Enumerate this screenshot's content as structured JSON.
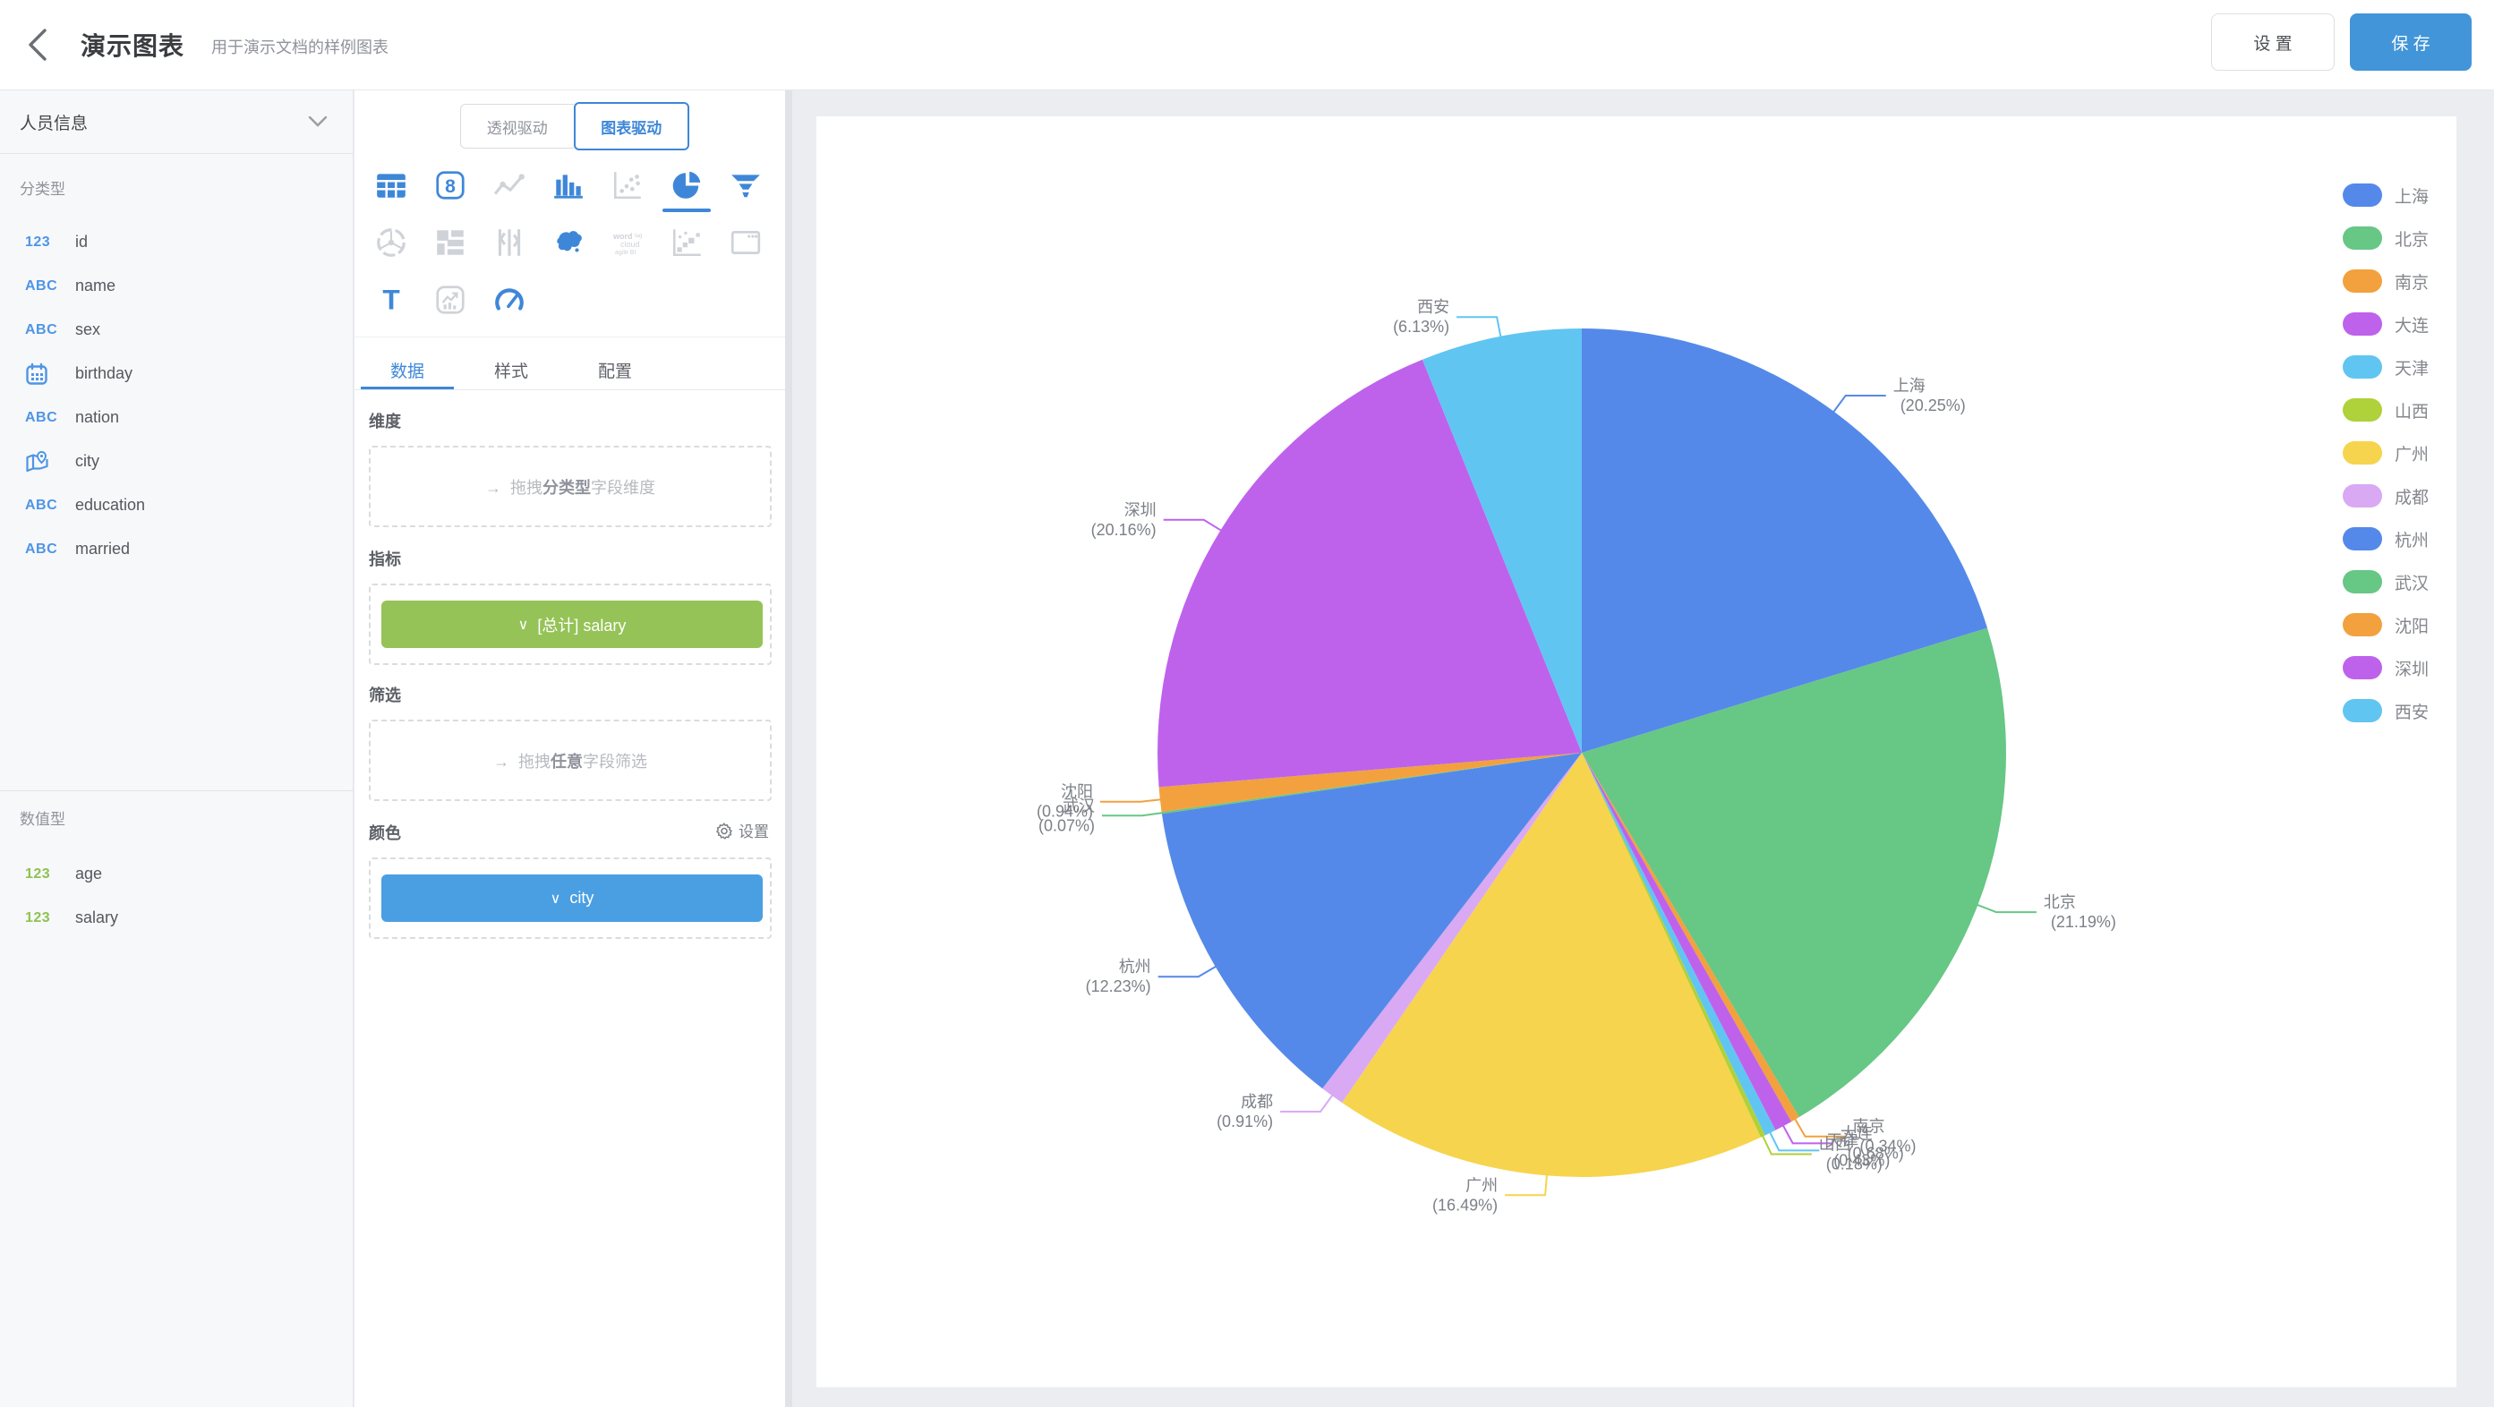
{
  "header": {
    "title": "演示图表",
    "subtitle": "用于演示文档的样例图表",
    "settings_label": "设 置",
    "save_label": "保 存",
    "accent_color": "#4295D8"
  },
  "sidebar": {
    "dataset_name": "人员信息",
    "section_categorical": "分类型",
    "section_numeric": "数值型",
    "categorical_fields": [
      {
        "icon": "123",
        "color": "blue",
        "name": "id"
      },
      {
        "icon": "ABC",
        "color": "blue",
        "name": "name"
      },
      {
        "icon": "ABC",
        "color": "blue",
        "name": "sex"
      },
      {
        "icon": "calendar",
        "color": "blue",
        "name": "birthday"
      },
      {
        "icon": "ABC",
        "color": "blue",
        "name": "nation"
      },
      {
        "icon": "location",
        "color": "blue",
        "name": "city"
      },
      {
        "icon": "ABC",
        "color": "blue",
        "name": "education"
      },
      {
        "icon": "ABC",
        "color": "blue",
        "name": "married"
      }
    ],
    "numeric_fields": [
      {
        "icon": "123",
        "color": "green",
        "name": "age"
      },
      {
        "icon": "123",
        "color": "green",
        "name": "salary"
      }
    ]
  },
  "panel": {
    "mode_tabs": [
      {
        "label": "透视驱动",
        "active": false
      },
      {
        "label": "图表驱动",
        "active": true
      }
    ],
    "chart_type_icons": [
      "table-icon",
      "kpi-card-icon",
      "line-chart-icon",
      "bar-chart-icon",
      "scatter-chart-icon",
      "pie-chart-icon",
      "funnel-chart-icon",
      "radar-chart-icon",
      "mosaic-chart-icon",
      "candlestick-chart-icon",
      "china-map-icon",
      "word-cloud-icon",
      "waterfall-chart-icon",
      "iframe-window-icon",
      "text-widget-icon",
      "quota-card-icon",
      "gauge-chart-icon"
    ],
    "selected_chart_type": "pie-chart-icon",
    "tabs": [
      {
        "label": "数据",
        "active": true
      },
      {
        "label": "样式",
        "active": false
      },
      {
        "label": "配置",
        "active": false
      }
    ],
    "sections": {
      "drag_arrow": "→",
      "pill_chevron": "∨",
      "dimension_label": "维度",
      "dimension_ph": {
        "prefix": "拖拽",
        "strong": "分类型",
        "suffix": "字段维度"
      },
      "metric_label": "指标",
      "metric_pill": "[总计] salary",
      "metric_pill_color": "#95C357",
      "filter_label": "筛选",
      "filter_ph": {
        "prefix": "拖拽",
        "strong": "任意",
        "suffix": "字段筛选"
      },
      "color_label": "颜色",
      "color_settings_label": "设置",
      "color_pill": "city",
      "color_pill_color": "#4A9FE2"
    }
  },
  "chart_data": {
    "type": "pie",
    "categories": [
      "上海",
      "北京",
      "南京",
      "大连",
      "天津",
      "山西",
      "广州",
      "成都",
      "杭州",
      "武汉",
      "沈阳",
      "深圳",
      "西安"
    ],
    "values": [
      20.25,
      21.19,
      0.34,
      0.68,
      0.43,
      0.18,
      16.49,
      0.91,
      12.23,
      0.07,
      0.94,
      20.16,
      6.13
    ],
    "unit": "%",
    "label_format": "{name} ({value}%)",
    "legend_position": "right",
    "start_angle_deg": 0,
    "direction": "clockwise",
    "palette": [
      "#5589E9",
      "#67C785",
      "#F2A13E",
      "#BE62EC",
      "#60C5F1",
      "#AFD139",
      "#F6D44D",
      "#D9A9F4"
    ],
    "label_color": "#7C8087"
  }
}
